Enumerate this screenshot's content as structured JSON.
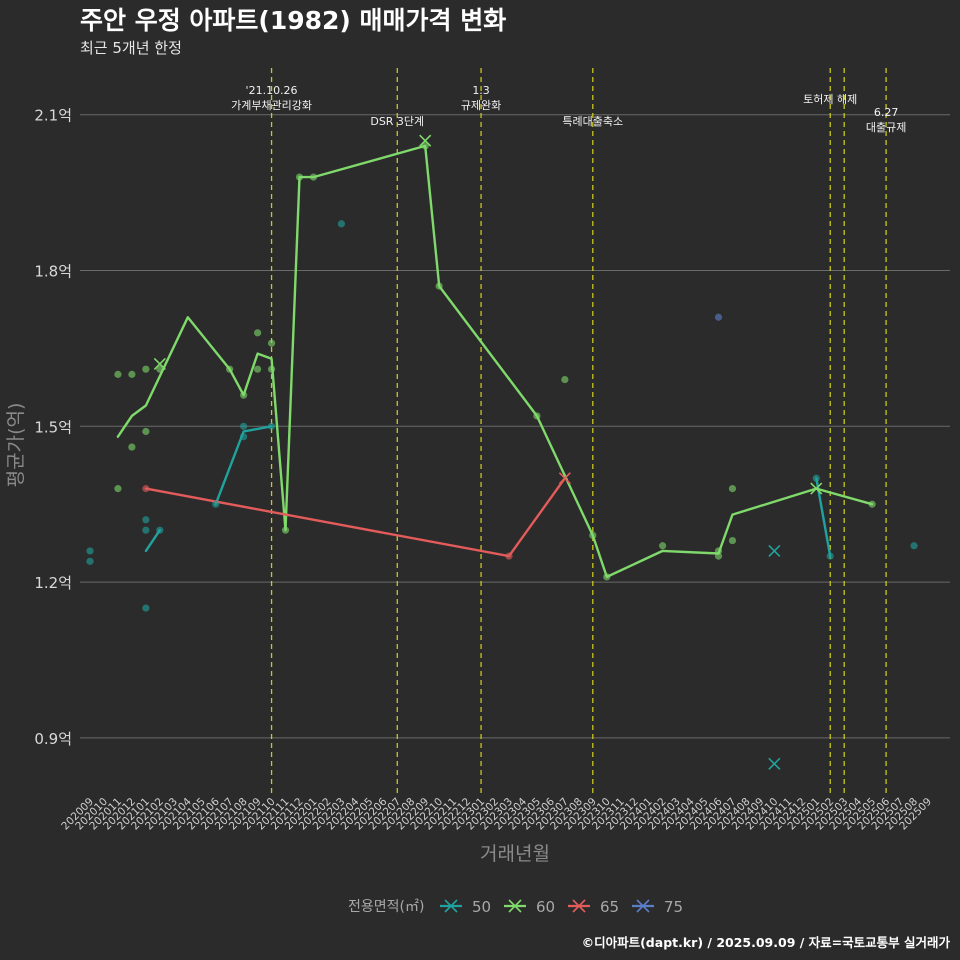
{
  "chart_data": {
    "type": "line",
    "title": "주안 우정 아파트(1982) 매매가격 변화",
    "subtitle": "최근 5개년 한정",
    "xlabel": "거래년월",
    "ylabel": "평균가(억)",
    "ylim": [
      0.79,
      2.19
    ],
    "yticks": [
      0.9,
      1.2,
      1.5,
      1.8,
      2.1
    ],
    "ytick_labels": [
      "0.9억",
      "1.2억",
      "1.5억",
      "1.8억",
      "2.1억"
    ],
    "categories": [
      "202009",
      "202010",
      "202011",
      "202012",
      "202101",
      "202102",
      "202103",
      "202104",
      "202105",
      "202106",
      "202107",
      "202108",
      "202109",
      "202110",
      "202111",
      "202112",
      "202201",
      "202202",
      "202203",
      "202204",
      "202205",
      "202206",
      "202207",
      "202208",
      "202209",
      "202210",
      "202211",
      "202212",
      "202301",
      "202302",
      "202303",
      "202304",
      "202305",
      "202306",
      "202307",
      "202308",
      "202309",
      "202310",
      "202311",
      "202312",
      "202401",
      "202402",
      "202403",
      "202404",
      "202405",
      "202406",
      "202407",
      "202408",
      "202409",
      "202410",
      "202411",
      "202412",
      "202501",
      "202502",
      "202503",
      "202504",
      "202505",
      "202506",
      "202507",
      "202508",
      "202509"
    ],
    "grid": true,
    "legend_title": "전용면적(㎡)",
    "legend_position": "bottom",
    "events": [
      {
        "x": 13.0,
        "label": "'21.10.26\n가계부채관리강화",
        "row": "top"
      },
      {
        "x": 22.0,
        "label": "DSR 3단계",
        "row": "bottom"
      },
      {
        "x": 28.0,
        "label": "1.3\n규제완화",
        "row": "top"
      },
      {
        "x": 36.0,
        "label": "특례대출축소",
        "row": "bottom"
      },
      {
        "x": 53.0,
        "label": "토허제 해제",
        "row": "top"
      },
      {
        "x": 54.0,
        "label": "",
        "row": "top"
      },
      {
        "x": 57.0,
        "label": "6.27\n대출규제",
        "row": "bottom"
      }
    ],
    "series": [
      {
        "name": "50",
        "color": "#20a39e",
        "line": [
          [
            4,
            1.26
          ],
          [
            5,
            1.3
          ],
          null,
          [
            9,
            1.35
          ],
          [
            11,
            1.49
          ],
          [
            13,
            1.5
          ],
          null,
          [
            52,
            1.4
          ],
          [
            53,
            1.25
          ]
        ],
        "points": [
          [
            0,
            1.24
          ],
          [
            0,
            1.26
          ],
          [
            4,
            1.3
          ],
          [
            4,
            1.32
          ],
          [
            4,
            1.15
          ],
          [
            5,
            1.3
          ],
          [
            9,
            1.35
          ],
          [
            11,
            1.48
          ],
          [
            11,
            1.5
          ],
          [
            13,
            1.5
          ],
          [
            18,
            1.89
          ],
          [
            52,
            1.4
          ],
          [
            53,
            1.25
          ],
          [
            59,
            1.27
          ]
        ],
        "crosses": [
          [
            49,
            1.26
          ],
          [
            49,
            0.85
          ]
        ]
      },
      {
        "name": "60",
        "color": "#7fd96b",
        "line": [
          [
            2,
            1.48
          ],
          [
            3,
            1.52
          ],
          [
            4,
            1.54
          ],
          [
            7,
            1.71
          ],
          [
            10,
            1.61
          ],
          [
            11,
            1.56
          ],
          [
            12,
            1.64
          ],
          [
            13,
            1.63
          ],
          [
            14,
            1.3
          ],
          [
            15,
            1.98
          ],
          [
            16,
            1.98
          ],
          [
            24,
            2.04
          ],
          [
            25,
            1.77
          ],
          [
            32,
            1.52
          ],
          [
            36,
            1.29
          ],
          [
            37,
            1.21
          ],
          [
            41,
            1.26
          ],
          [
            45,
            1.255
          ],
          [
            46,
            1.33
          ],
          [
            52,
            1.38
          ],
          [
            56,
            1.35
          ]
        ],
        "points": [
          [
            2,
            1.38
          ],
          [
            2,
            1.6
          ],
          [
            3,
            1.6
          ],
          [
            3,
            1.46
          ],
          [
            4,
            1.49
          ],
          [
            4,
            1.61
          ],
          [
            5,
            1.61
          ],
          [
            10,
            1.61
          ],
          [
            11,
            1.56
          ],
          [
            12,
            1.68
          ],
          [
            12,
            1.61
          ],
          [
            13,
            1.66
          ],
          [
            13,
            1.61
          ],
          [
            14,
            1.3
          ],
          [
            15,
            1.98
          ],
          [
            16,
            1.98
          ],
          [
            24,
            2.04
          ],
          [
            25,
            1.77
          ],
          [
            32,
            1.52
          ],
          [
            34,
            1.59
          ],
          [
            36,
            1.29
          ],
          [
            37,
            1.21
          ],
          [
            41,
            1.27
          ],
          [
            45,
            1.26
          ],
          [
            45,
            1.25
          ],
          [
            46,
            1.38
          ],
          [
            46,
            1.28
          ],
          [
            56,
            1.35
          ]
        ],
        "crosses": [
          [
            5,
            1.62
          ],
          [
            24,
            2.05
          ],
          [
            52,
            1.38
          ]
        ]
      },
      {
        "name": "65",
        "color": "#e35b5b",
        "line": [
          [
            4,
            1.38
          ],
          [
            30,
            1.25
          ],
          [
            34,
            1.4
          ]
        ],
        "points": [
          [
            4,
            1.38
          ],
          [
            30,
            1.25
          ]
        ],
        "crosses": [
          [
            34,
            1.4
          ]
        ]
      },
      {
        "name": "75",
        "color": "#5c7ec8",
        "line": [],
        "points": [
          [
            45,
            1.71
          ]
        ],
        "crosses": []
      }
    ]
  },
  "caption": "©디아파트(dapt.kr) / 2025.09.09 / 자료=국토교통부 실거래가"
}
